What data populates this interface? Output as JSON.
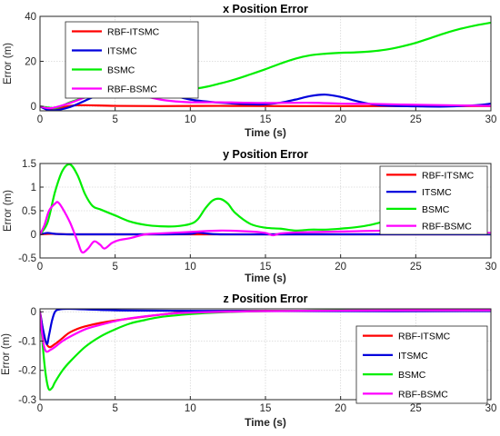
{
  "chart_data": [
    {
      "type": "line",
      "title": "x Position Error",
      "xlabel": "Time (s)",
      "ylabel": "Error (m)",
      "xlim": [
        0,
        30
      ],
      "ylim": [
        -2,
        40
      ],
      "xticks": [
        0,
        5,
        10,
        15,
        20,
        25,
        30
      ],
      "yticks": [
        0,
        20,
        40
      ],
      "grid": true,
      "legend_position": "top-left",
      "series": [
        {
          "name": "RBF-ITSMC",
          "color": "#ff0000",
          "x": [
            0,
            0.5,
            1,
            2,
            3,
            5,
            8,
            12,
            16,
            20,
            25,
            30
          ],
          "y": [
            0,
            -1.5,
            -1.2,
            0.2,
            0.5,
            0.2,
            0.1,
            0.2,
            0.1,
            0.1,
            0.1,
            0.1
          ]
        },
        {
          "name": "ITSMC",
          "color": "#0000dd",
          "x": [
            0,
            0.5,
            1,
            2,
            3,
            4,
            5,
            6,
            6.5,
            7,
            8,
            9,
            10,
            12,
            14,
            15,
            16,
            17,
            18,
            19,
            20,
            21,
            22,
            23,
            25,
            27,
            29,
            30
          ],
          "y": [
            0,
            -1.5,
            -1.8,
            -0.3,
            2.5,
            5.5,
            8.2,
            9.6,
            10.0,
            9.8,
            7.8,
            4.8,
            3.0,
            1.6,
            0.9,
            0.9,
            1.6,
            3.0,
            4.6,
            5.2,
            4.2,
            2.4,
            1.0,
            0.3,
            0,
            -0.1,
            0.5,
            1.2
          ]
        },
        {
          "name": "BSMC",
          "color": "#00ee00",
          "x": [
            0,
            0.5,
            1,
            1.5,
            2,
            3,
            4,
            5,
            6,
            7,
            8,
            9,
            10,
            11,
            12,
            13,
            14,
            15,
            16,
            17,
            18,
            19,
            20,
            21,
            22,
            23,
            24,
            25,
            26,
            27,
            28,
            29,
            30
          ],
          "y": [
            0,
            -0.5,
            -0.8,
            0.3,
            1.8,
            4.0,
            5.6,
            6.4,
            6.8,
            6.8,
            6.9,
            7.1,
            7.6,
            8.6,
            10.2,
            12.0,
            14.2,
            16.5,
            19.0,
            21.2,
            22.7,
            23.4,
            23.8,
            24.0,
            24.4,
            25.2,
            26.5,
            28.2,
            30.4,
            32.6,
            34.5,
            36.0,
            37.2
          ]
        },
        {
          "name": "RBF-BSMC",
          "color": "#ff00ff",
          "x": [
            0,
            0.5,
            1,
            2,
            3,
            4,
            5,
            5.5,
            6,
            7,
            8,
            9,
            10,
            12,
            15,
            18,
            20,
            22,
            24,
            26,
            28,
            30
          ],
          "y": [
            0,
            -0.8,
            -0.5,
            1.5,
            4.0,
            6.5,
            7.8,
            7.4,
            6.5,
            4.5,
            3.0,
            2.2,
            1.8,
            1.8,
            1.5,
            1.6,
            1.2,
            1.1,
            0.8,
            0.6,
            0.4,
            0.2
          ]
        }
      ]
    },
    {
      "type": "line",
      "title": "y Position Error",
      "xlabel": "Time (s)",
      "ylabel": "Error (m)",
      "xlim": [
        0,
        30
      ],
      "ylim": [
        -0.5,
        1.5
      ],
      "xticks": [
        0,
        5,
        10,
        15,
        20,
        25,
        30
      ],
      "yticks": [
        -0.5,
        0,
        0.5,
        1,
        1.5
      ],
      "grid": true,
      "legend_position": "top-right",
      "series": [
        {
          "name": "RBF-ITSMC",
          "color": "#ff0000",
          "x": [
            0,
            0.5,
            1,
            2,
            5,
            10,
            15,
            20,
            25,
            30
          ],
          "y": [
            0,
            0.01,
            0.01,
            0,
            0,
            0,
            0,
            0,
            0,
            0
          ]
        },
        {
          "name": "ITSMC",
          "color": "#0000dd",
          "x": [
            0,
            0.5,
            1,
            2,
            5,
            8,
            10,
            10.5,
            11,
            12,
            15,
            20,
            25,
            30
          ],
          "y": [
            0,
            0.03,
            0.01,
            0,
            0,
            0,
            0.01,
            0.04,
            0.02,
            0,
            0,
            0,
            0,
            0
          ]
        },
        {
          "name": "BSMC",
          "color": "#00ee00",
          "x": [
            0,
            0.5,
            1,
            1.5,
            2,
            2.5,
            3,
            3.5,
            4,
            5,
            6,
            7,
            8,
            9,
            10,
            10.5,
            11,
            11.5,
            12,
            12.5,
            13,
            14,
            15,
            16,
            17,
            18,
            19,
            20,
            21,
            22,
            23,
            24,
            25,
            26,
            27,
            28,
            29,
            30
          ],
          "y": [
            0,
            0.25,
            0.9,
            1.35,
            1.48,
            1.25,
            0.85,
            0.6,
            0.53,
            0.4,
            0.27,
            0.2,
            0.17,
            0.17,
            0.22,
            0.32,
            0.55,
            0.72,
            0.75,
            0.65,
            0.45,
            0.22,
            0.14,
            0.12,
            0.08,
            0.1,
            0.1,
            0.12,
            0.15,
            0.2,
            0.28,
            0.36,
            0.4,
            0.3,
            0.15,
            0.05,
            0.02,
            0.02
          ]
        },
        {
          "name": "RBF-BSMC",
          "color": "#ff00ff",
          "x": [
            0,
            0.3,
            0.6,
            1,
            1.2,
            1.5,
            2,
            2.5,
            2.8,
            3.2,
            3.6,
            4,
            4.3,
            4.8,
            5.3,
            6,
            7,
            8,
            10,
            12,
            14,
            15,
            15.5,
            16,
            17,
            20,
            24,
            26,
            28,
            30
          ],
          "y": [
            0,
            0.2,
            0.5,
            0.65,
            0.68,
            0.55,
            0.25,
            -0.15,
            -0.38,
            -0.3,
            -0.15,
            -0.22,
            -0.3,
            -0.18,
            -0.12,
            -0.08,
            0,
            0.02,
            0.05,
            0.08,
            0.06,
            0.03,
            -0.02,
            0.02,
            0.04,
            0.06,
            0.08,
            0.05,
            0.04,
            0.03
          ]
        }
      ]
    },
    {
      "type": "line",
      "title": "z Position Error",
      "xlabel": "Time (s)",
      "ylabel": "Error (m)",
      "xlim": [
        0,
        30
      ],
      "ylim": [
        -0.3,
        0.01
      ],
      "xticks": [
        0,
        5,
        10,
        15,
        20,
        25,
        30
      ],
      "yticks": [
        -0.3,
        -0.2,
        -0.1,
        0
      ],
      "grid": true,
      "legend_position": "center-right",
      "series": [
        {
          "name": "RBF-ITSMC",
          "color": "#ff0000",
          "x": [
            0,
            0.3,
            0.6,
            1,
            1.5,
            2,
            3,
            5,
            10,
            15,
            20,
            25,
            30
          ],
          "y": [
            0,
            -0.09,
            -0.12,
            -0.11,
            -0.09,
            -0.07,
            -0.05,
            -0.03,
            0,
            0.003,
            0.004,
            0.005,
            0.005
          ]
        },
        {
          "name": "ITSMC",
          "color": "#0000dd",
          "x": [
            0,
            0.2,
            0.45,
            0.6,
            0.8,
            1,
            1.3,
            2,
            5,
            10,
            20,
            30
          ],
          "y": [
            0,
            -0.06,
            -0.11,
            -0.08,
            -0.03,
            0,
            0.008,
            0.01,
            0.005,
            0.003,
            0.002,
            0.002
          ]
        },
        {
          "name": "BSMC",
          "color": "#00ee00",
          "x": [
            0,
            0.3,
            0.55,
            0.8,
            1,
            1.5,
            2,
            3,
            4,
            5,
            6,
            7,
            8,
            10,
            12,
            15,
            20,
            25,
            30
          ],
          "y": [
            0,
            -0.18,
            -0.26,
            -0.26,
            -0.24,
            -0.2,
            -0.17,
            -0.12,
            -0.085,
            -0.06,
            -0.04,
            -0.028,
            -0.018,
            -0.008,
            -0.002,
            0.002,
            0.005,
            0.005,
            0.005
          ]
        },
        {
          "name": "RBF-BSMC",
          "color": "#ff00ff",
          "x": [
            0,
            0.2,
            0.4,
            0.7,
            1,
            1.5,
            2,
            3,
            4,
            5,
            6,
            8,
            10,
            15,
            20,
            25,
            30
          ],
          "y": [
            0,
            -0.1,
            -0.135,
            -0.13,
            -0.12,
            -0.1,
            -0.085,
            -0.06,
            -0.045,
            -0.032,
            -0.022,
            -0.01,
            -0.003,
            0.002,
            0.004,
            0.005,
            0.005
          ]
        }
      ]
    }
  ]
}
